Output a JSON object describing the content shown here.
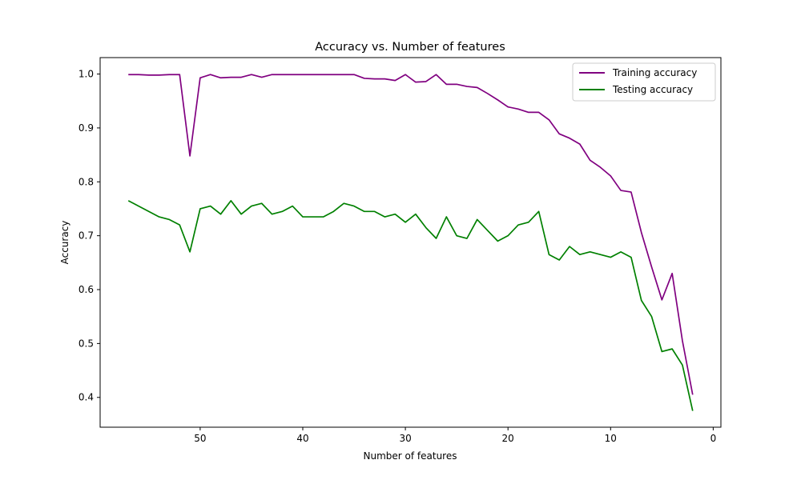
{
  "chart_data": {
    "type": "line",
    "title": "Accuracy vs. Number of features",
    "xlabel": "Number of features",
    "ylabel": "Accuracy",
    "xlim": [
      59.75,
      -0.75
    ],
    "ylim": [
      0.3447,
      1.0305
    ],
    "x_inverted": true,
    "xticks": [
      50,
      40,
      30,
      20,
      10,
      0
    ],
    "yticks": [
      0.4,
      0.5,
      0.6,
      0.7,
      0.8,
      0.9,
      1.0
    ],
    "grid": false,
    "legend_position": "top-right",
    "x": [
      57,
      56,
      55,
      54,
      53,
      52,
      51,
      50,
      49,
      48,
      47,
      46,
      45,
      44,
      43,
      42,
      41,
      40,
      39,
      38,
      37,
      36,
      35,
      34,
      33,
      32,
      31,
      30,
      29,
      28,
      27,
      26,
      25,
      24,
      23,
      22,
      21,
      20,
      19,
      18,
      17,
      16,
      15,
      14,
      13,
      12,
      11,
      10,
      9,
      8,
      7,
      6,
      5,
      4,
      3,
      2
    ],
    "series": [
      {
        "name": "Training accuracy",
        "color": "#800080",
        "values": [
          0.999,
          0.999,
          0.998,
          0.998,
          0.999,
          0.999,
          0.848,
          0.993,
          0.999,
          0.993,
          0.994,
          0.994,
          0.999,
          0.994,
          0.999,
          0.999,
          0.999,
          0.999,
          0.999,
          0.999,
          0.999,
          0.999,
          0.999,
          0.992,
          0.991,
          0.991,
          0.988,
          0.999,
          0.985,
          0.986,
          0.999,
          0.981,
          0.981,
          0.977,
          0.975,
          0.964,
          0.952,
          0.939,
          0.935,
          0.929,
          0.929,
          0.915,
          0.889,
          0.881,
          0.87,
          0.84,
          0.827,
          0.811,
          0.784,
          0.781,
          0.706,
          0.642,
          0.581,
          0.63,
          0.505,
          0.405
        ]
      },
      {
        "name": "Testing accuracy",
        "color": "#008000",
        "values": [
          0.765,
          0.755,
          0.745,
          0.735,
          0.73,
          0.72,
          0.67,
          0.75,
          0.755,
          0.74,
          0.765,
          0.74,
          0.755,
          0.76,
          0.74,
          0.745,
          0.755,
          0.735,
          0.735,
          0.735,
          0.745,
          0.76,
          0.755,
          0.745,
          0.745,
          0.735,
          0.74,
          0.725,
          0.74,
          0.715,
          0.695,
          0.735,
          0.7,
          0.695,
          0.73,
          0.71,
          0.69,
          0.7,
          0.72,
          0.725,
          0.745,
          0.665,
          0.655,
          0.68,
          0.665,
          0.67,
          0.665,
          0.66,
          0.67,
          0.66,
          0.58,
          0.55,
          0.485,
          0.49,
          0.46,
          0.375
        ]
      }
    ]
  }
}
